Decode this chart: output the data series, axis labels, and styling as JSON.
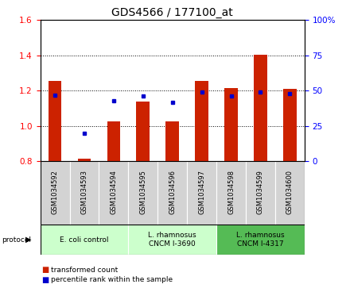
{
  "title": "GDS4566 / 177100_at",
  "samples": [
    "GSM1034592",
    "GSM1034593",
    "GSM1034594",
    "GSM1034595",
    "GSM1034596",
    "GSM1034597",
    "GSM1034598",
    "GSM1034599",
    "GSM1034600"
  ],
  "transformed_count": [
    1.255,
    0.815,
    1.025,
    1.14,
    1.025,
    1.255,
    1.215,
    1.405,
    1.21
  ],
  "percentile_rank": [
    47,
    20,
    43,
    46,
    42,
    49,
    46,
    49,
    48
  ],
  "ylim_left": [
    0.8,
    1.6
  ],
  "ylim_right": [
    0,
    100
  ],
  "yticks_left": [
    0.8,
    1.0,
    1.2,
    1.4,
    1.6
  ],
  "yticks_right": [
    0,
    25,
    50,
    75,
    100
  ],
  "bar_color": "#cc2200",
  "dot_color": "#0000cc",
  "bg_color": "#ffffff",
  "protocol_groups": [
    {
      "label": "E. coli control",
      "start": 0,
      "end": 3,
      "color": "#ccffcc"
    },
    {
      "label": "L. rhamnosus\nCNCM I-3690",
      "start": 3,
      "end": 6,
      "color": "#ccffcc"
    },
    {
      "label": "L. rhamnosus\nCNCM I-4317",
      "start": 6,
      "end": 9,
      "color": "#55bb55"
    }
  ],
  "legend_items": [
    {
      "label": "transformed count",
      "color": "#cc2200"
    },
    {
      "label": "percentile rank within the sample",
      "color": "#0000cc"
    }
  ],
  "bar_baseline": 0.8,
  "bar_width": 0.45,
  "title_fontsize": 10,
  "tick_fontsize": 7.5,
  "sample_fontsize": 6.0,
  "proto_fontsize": 6.5,
  "legend_fontsize": 6.5
}
